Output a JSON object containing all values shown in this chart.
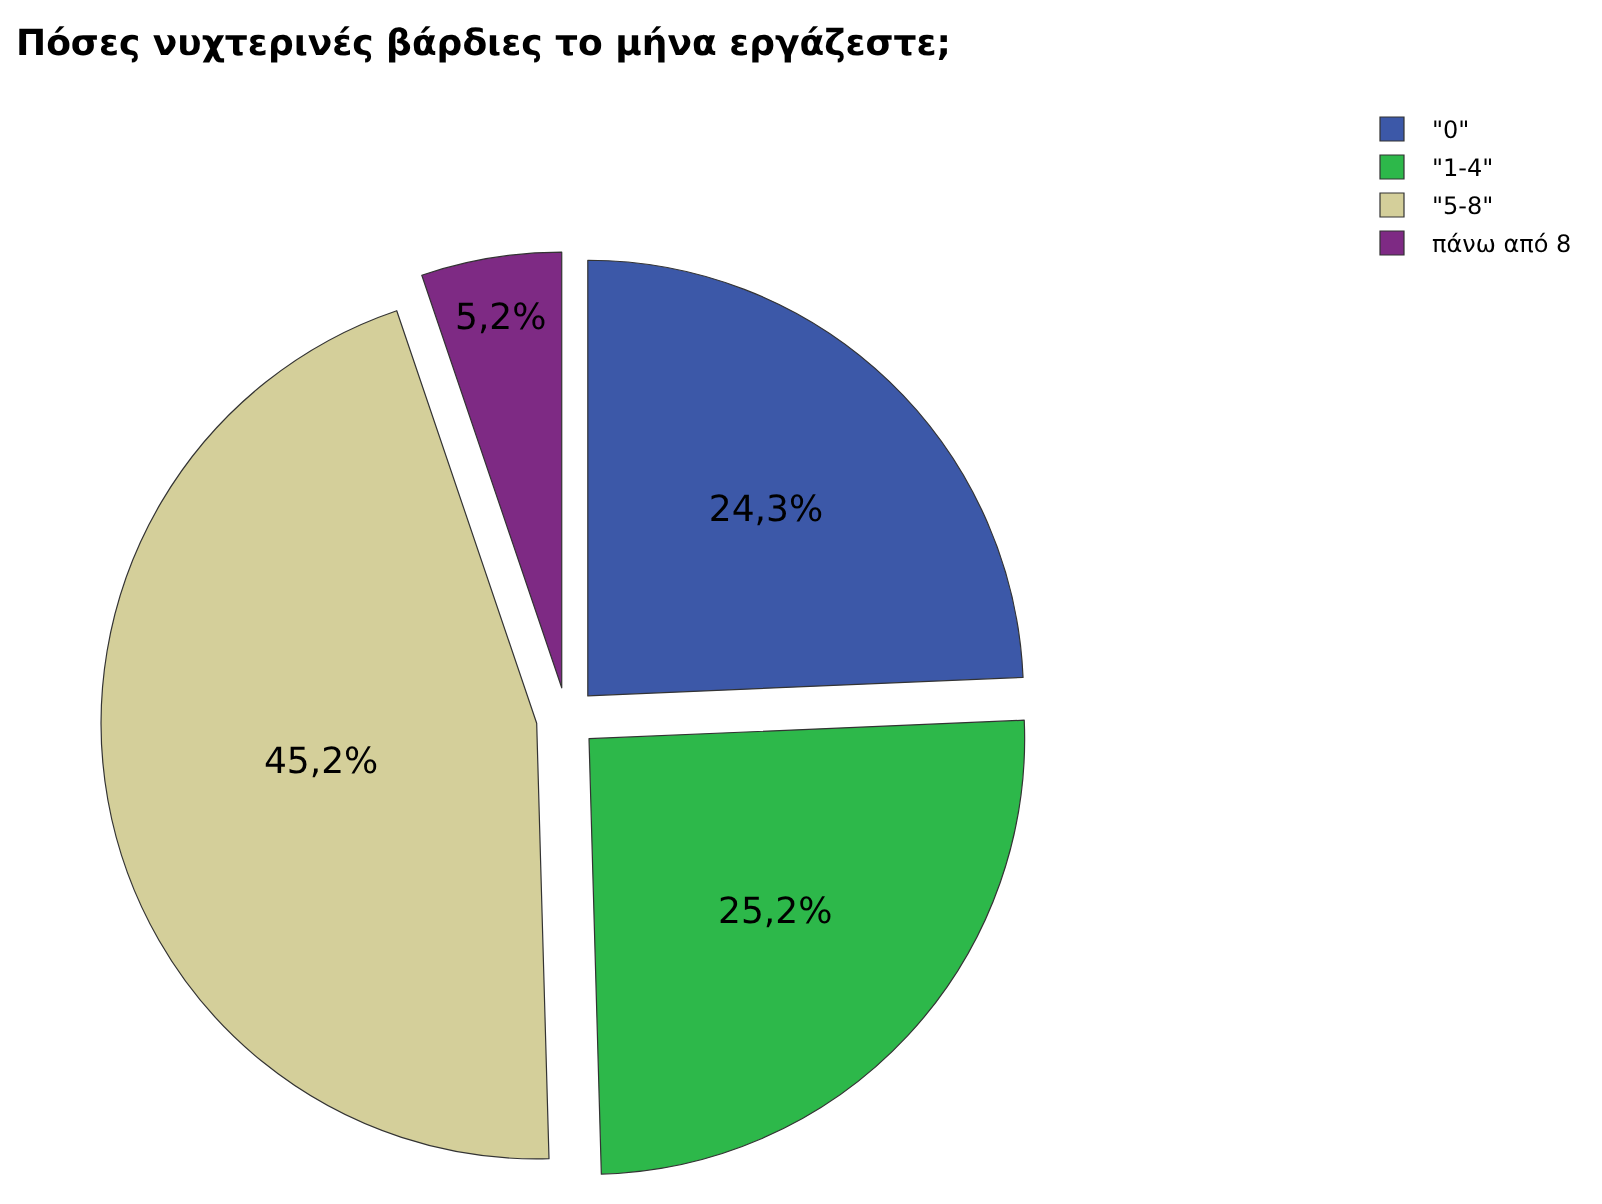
{
  "chart_data": {
    "type": "pie",
    "title": "Πόσες νυχτερινές βάρδιες το μήνα εργάζεστε;",
    "categories": [
      "\"0\"",
      "\"1-4\"",
      "\"5-8\"",
      "πάνω από 8"
    ],
    "values": [
      24.3,
      25.2,
      45.2,
      5.2
    ],
    "value_labels": [
      "24,3%",
      "25,2%",
      "45,2%",
      "5,2%"
    ],
    "colors": [
      "#3c58a8",
      "#2db84a",
      "#d4cf9a",
      "#7e2a84"
    ],
    "legend": "top right"
  }
}
